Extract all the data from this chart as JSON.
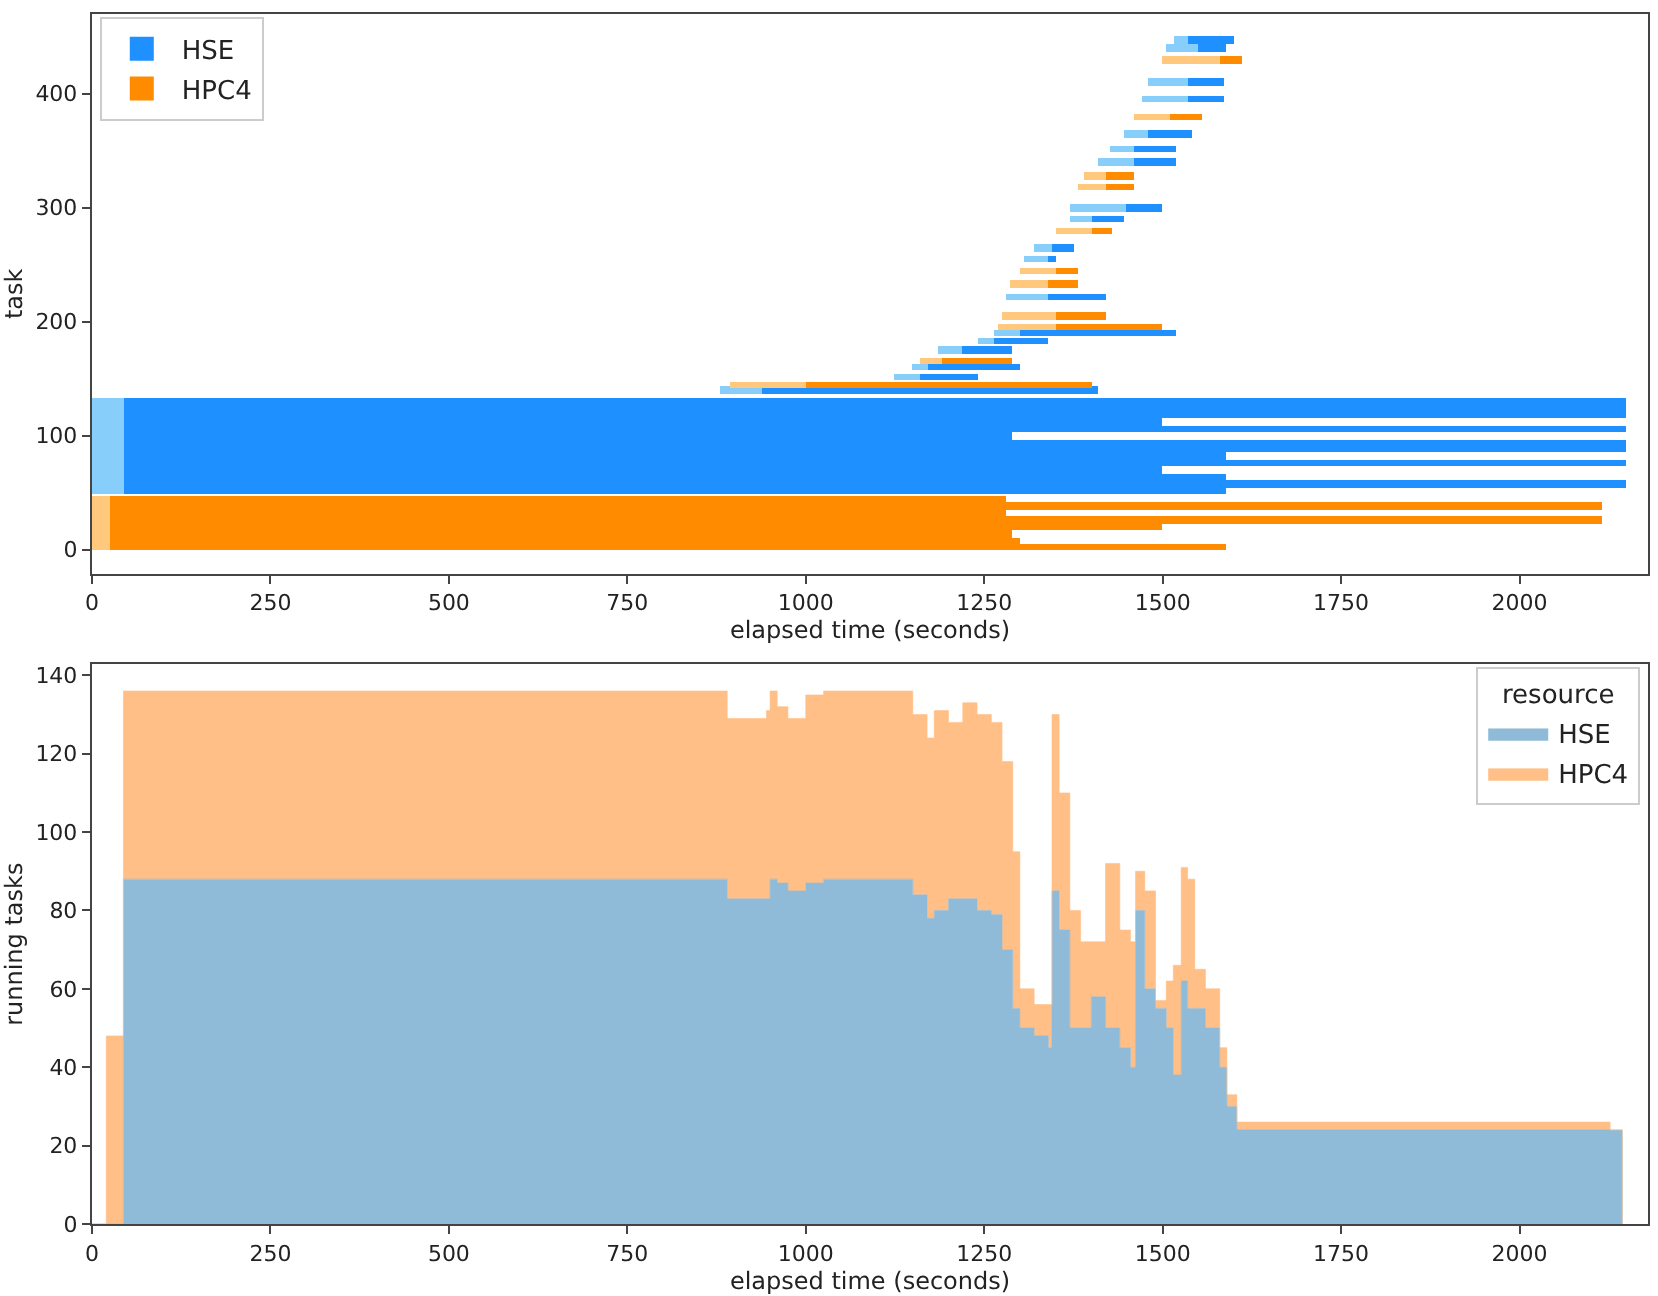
{
  "chart_data": [
    {
      "type": "bar",
      "orientation": "horizontal",
      "xlabel": "elapsed time (seconds)",
      "ylabel": "task",
      "xlim": [
        0,
        2180
      ],
      "xticks": [
        0,
        250,
        500,
        750,
        1000,
        1250,
        1500,
        1750,
        2000
      ],
      "ylim": [
        -21,
        470
      ],
      "yticks": [
        0,
        100,
        200,
        300,
        400
      ],
      "legend": "top left",
      "series": [
        {
          "color": "#87cefa",
          "x": [
            52,
            58,
            64,
            70,
            76,
            82,
            88,
            94,
            100,
            106,
            112,
            118,
            124,
            130,
            140,
            152,
            160,
            175,
            183,
            190,
            222,
            255,
            265,
            290,
            300,
            340,
            352,
            365,
            395,
            410,
            440,
            447
          ],
          "base": [
            0,
            0,
            0,
            0,
            0,
            0,
            0,
            0,
            0,
            0,
            0,
            0,
            0,
            0,
            880,
            1125,
            1150,
            1185,
            1240,
            1265,
            1280,
            1305,
            1320,
            1370,
            1370,
            1410,
            1425,
            1445,
            1470,
            1480,
            1505,
            1515
          ],
          "values": [
            45,
            45,
            45,
            45,
            45,
            45,
            45,
            45,
            45,
            45,
            45,
            45,
            45,
            45,
            60,
            35,
            20,
            35,
            25,
            35,
            60,
            35,
            25,
            30,
            80,
            50,
            35,
            35,
            65,
            55,
            45,
            20
          ]
        },
        {
          "name": "HSE",
          "color": "#1e90ff",
          "x": [
            52,
            58,
            64,
            70,
            76,
            82,
            88,
            94,
            100,
            106,
            112,
            118,
            124,
            130,
            140,
            152,
            160,
            175,
            183,
            190,
            222,
            255,
            265,
            290,
            300,
            340,
            352,
            365,
            395,
            410,
            440,
            447
          ],
          "base": [
            45,
            45,
            45,
            45,
            45,
            45,
            45,
            45,
            45,
            45,
            45,
            45,
            45,
            45,
            940,
            1160,
            1170,
            1220,
            1265,
            1300,
            1340,
            1340,
            1345,
            1400,
            1450,
            1460,
            1460,
            1480,
            1535,
            1535,
            1550,
            1535
          ],
          "values": [
            1545,
            2105,
            1545,
            1455,
            2105,
            1545,
            2105,
            2105,
            1245,
            2105,
            1455,
            2105,
            2105,
            2105,
            470,
            80,
            130,
            70,
            75,
            220,
            80,
            10,
            30,
            45,
            50,
            60,
            60,
            60,
            50,
            50,
            40,
            65
          ]
        },
        {
          "color": "#ffc87c",
          "x": [
            2,
            8,
            14,
            20,
            26,
            32,
            38,
            44,
            145,
            166,
            195,
            205,
            233,
            245,
            280,
            318,
            328,
            380,
            430
          ],
          "base": [
            0,
            0,
            0,
            0,
            0,
            0,
            0,
            0,
            895,
            1160,
            1270,
            1275,
            1285,
            1300,
            1350,
            1380,
            1390,
            1460,
            1500
          ],
          "values": [
            25,
            25,
            25,
            25,
            25,
            25,
            25,
            25,
            105,
            30,
            80,
            75,
            55,
            50,
            50,
            40,
            30,
            50,
            80
          ]
        },
        {
          "name": "HPC4",
          "color": "#ff8c00",
          "x": [
            2,
            8,
            14,
            20,
            26,
            32,
            38,
            44,
            145,
            166,
            195,
            205,
            233,
            245,
            280,
            318,
            328,
            380,
            430
          ],
          "base": [
            25,
            25,
            25,
            25,
            25,
            25,
            25,
            25,
            1000,
            1190,
            1350,
            1350,
            1340,
            1350,
            1400,
            1420,
            1420,
            1510,
            1580
          ],
          "values": [
            1565,
            1275,
            1265,
            1475,
            2090,
            1255,
            2090,
            1255,
            400,
            100,
            150,
            70,
            40,
            30,
            30,
            40,
            40,
            45,
            30
          ]
        }
      ]
    },
    {
      "type": "area",
      "stacked": true,
      "xlabel": "elapsed time (seconds)",
      "ylabel": "running tasks",
      "xlim": [
        0,
        2180
      ],
      "xticks": [
        0,
        250,
        500,
        750,
        1000,
        1250,
        1500,
        1750,
        2000
      ],
      "ylim": [
        0,
        142.8
      ],
      "yticks": [
        0,
        20,
        40,
        60,
        80,
        100,
        120,
        140
      ],
      "legend": "top right",
      "legend_title": "resource",
      "x": [
        0,
        20,
        44,
        880,
        890,
        945,
        950,
        960,
        975,
        1000,
        1025,
        1140,
        1150,
        1170,
        1180,
        1200,
        1220,
        1240,
        1260,
        1275,
        1290,
        1300,
        1320,
        1340,
        1345,
        1355,
        1370,
        1385,
        1400,
        1420,
        1440,
        1455,
        1462,
        1475,
        1490,
        1505,
        1515,
        1526,
        1535,
        1545,
        1560,
        1580,
        1590,
        1604,
        2127,
        2144
      ],
      "series": [
        {
          "name": "HSE",
          "color": "#8fbbd9",
          "values": [
            0,
            0,
            88,
            88,
            83,
            83,
            88,
            87,
            85,
            87,
            88,
            88,
            84,
            78,
            80,
            83,
            83,
            80,
            79,
            70,
            55,
            50,
            48,
            45,
            85,
            75,
            50,
            50,
            58,
            50,
            45,
            40,
            80,
            60,
            55,
            50,
            38,
            62,
            55,
            55,
            50,
            40,
            30,
            24,
            24,
            0
          ]
        },
        {
          "name": "HPC4",
          "color": "#ffbf86",
          "values": [
            0,
            48,
            48,
            48,
            46,
            48,
            48,
            45,
            44,
            48,
            48,
            48,
            46,
            46,
            51,
            45,
            50,
            50,
            49,
            48,
            40,
            10,
            8,
            11,
            45,
            35,
            30,
            22,
            14,
            42,
            30,
            32,
            10,
            25,
            2,
            12,
            28,
            29,
            33,
            10,
            10,
            5,
            3,
            2,
            0,
            0
          ]
        }
      ]
    }
  ]
}
